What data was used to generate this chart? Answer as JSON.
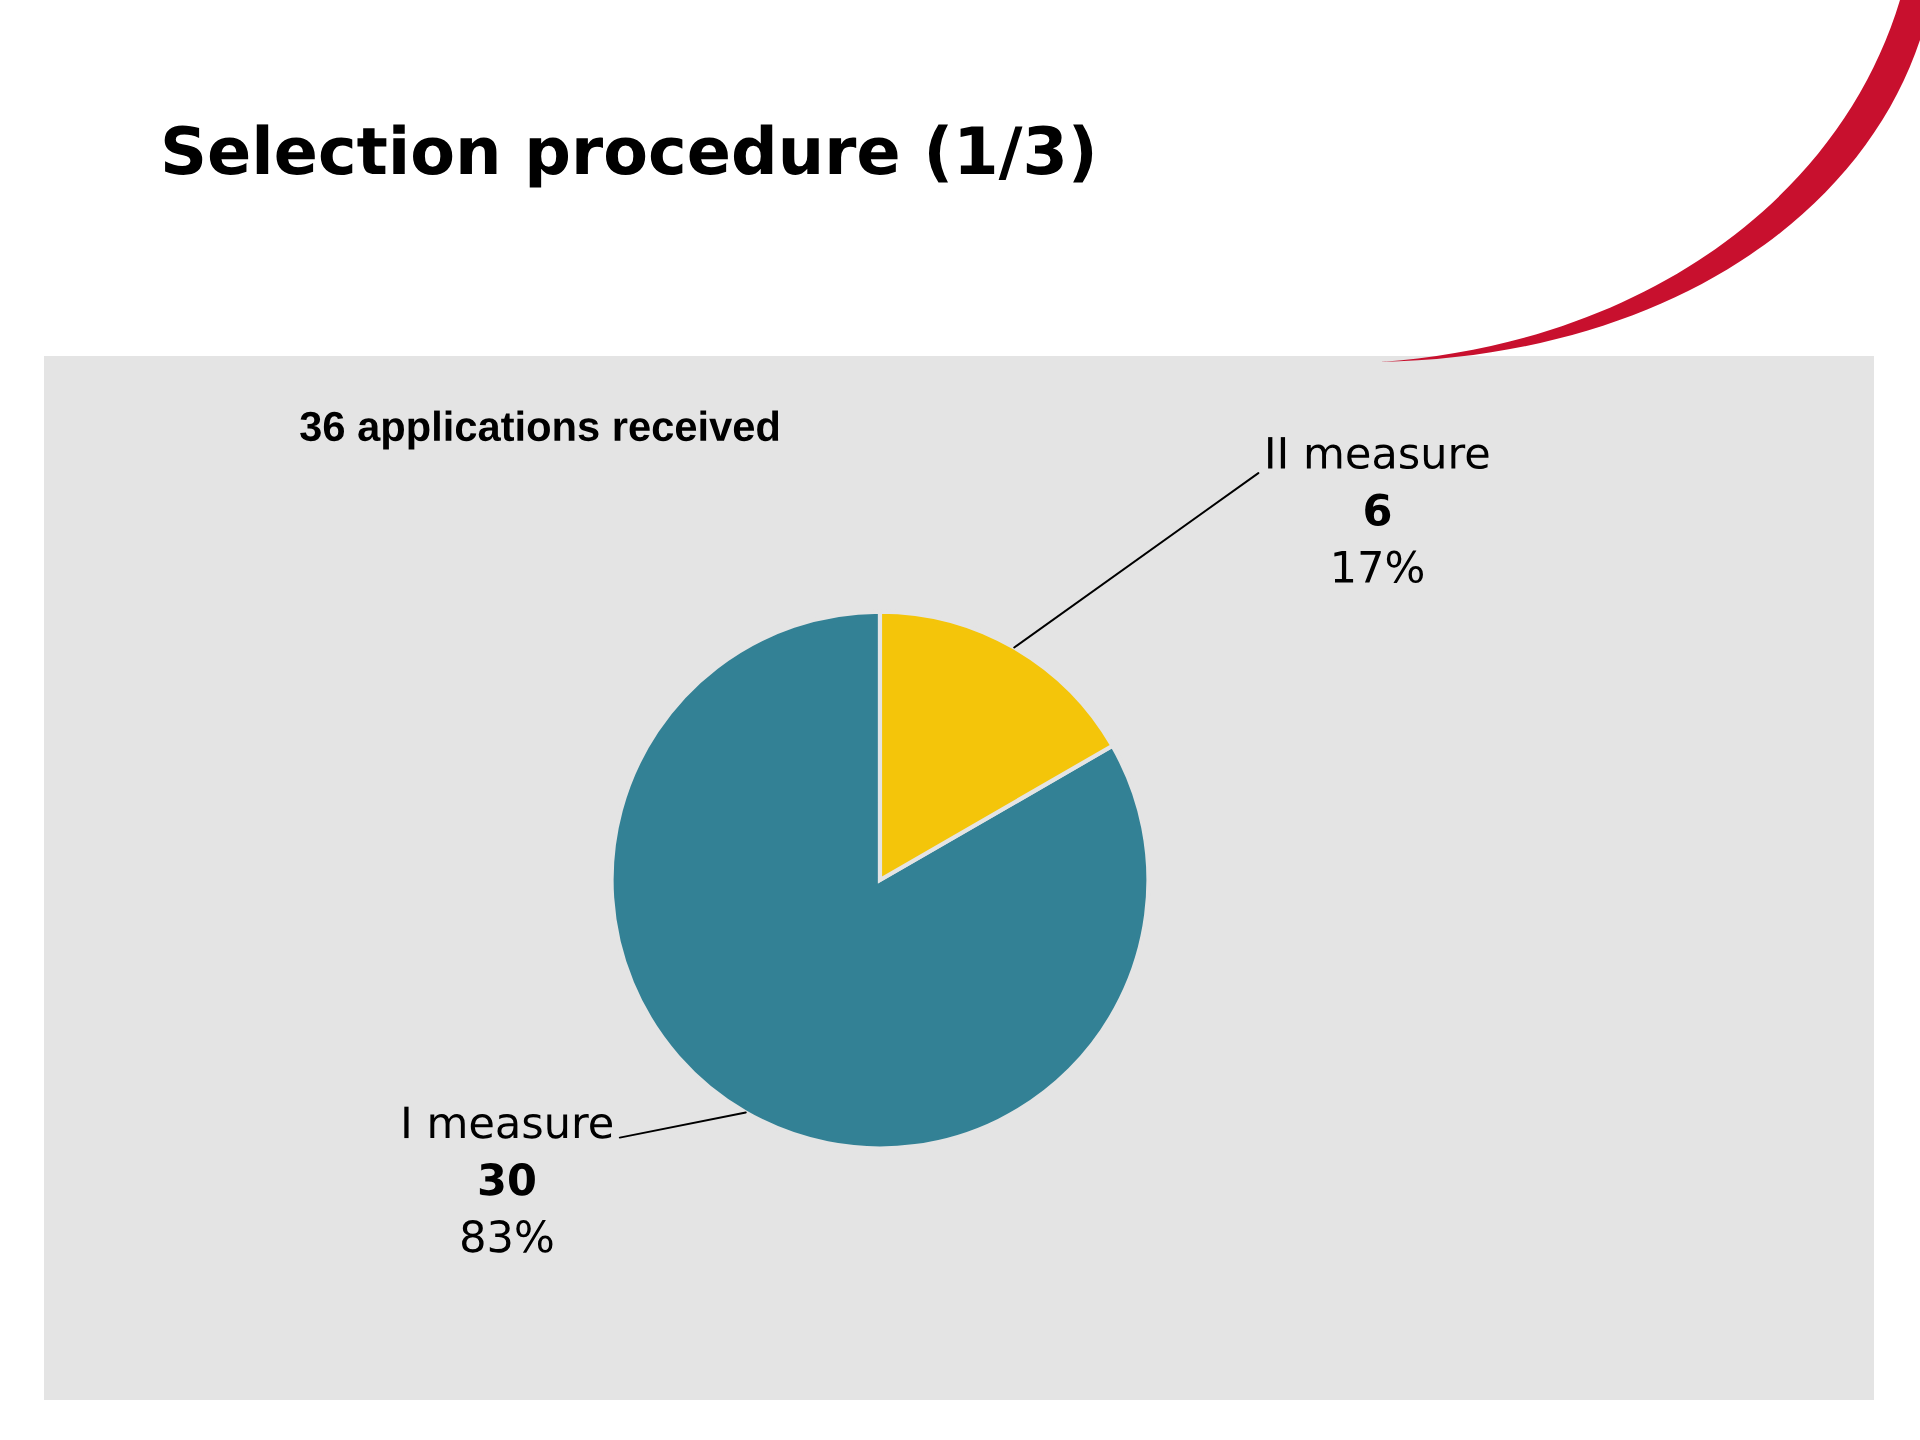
{
  "chart_data": {
    "type": "pie",
    "title": "Selection procedure (1/3)",
    "subtitle": "36 applications received",
    "categories": [
      "I measure",
      "II measure"
    ],
    "values": [
      30,
      6
    ],
    "colors": [
      "#338195",
      "#f4c50a"
    ],
    "value_labels": [
      "30\n83%",
      "6\n17%"
    ]
  }
}
